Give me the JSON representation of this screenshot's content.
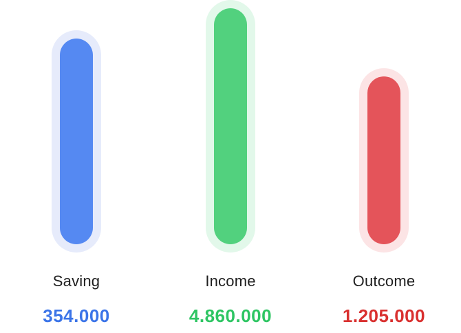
{
  "chart_data": {
    "type": "bar",
    "categories": [
      "Saving",
      "Income",
      "Outcome"
    ],
    "values": [
      354000,
      4860000,
      1205000
    ],
    "value_labels": [
      "354.000",
      "4.860.000",
      "1.205.000"
    ],
    "bar_fill_fractions": [
      0.88,
      1.0,
      0.73
    ],
    "colors": {
      "Saving": {
        "bar": "#5589f2",
        "halo": "#e6ebfb",
        "text": "#3b74e8"
      },
      "Income": {
        "bar": "#52d17e",
        "halo": "#e2f8ea",
        "text": "#2ec563"
      },
      "Outcome": {
        "bar": "#e4545a",
        "halo": "#fce4e5",
        "text": "#d9302f"
      }
    },
    "title": "",
    "xlabel": "",
    "ylabel": "",
    "grid": false,
    "legend": "none"
  }
}
